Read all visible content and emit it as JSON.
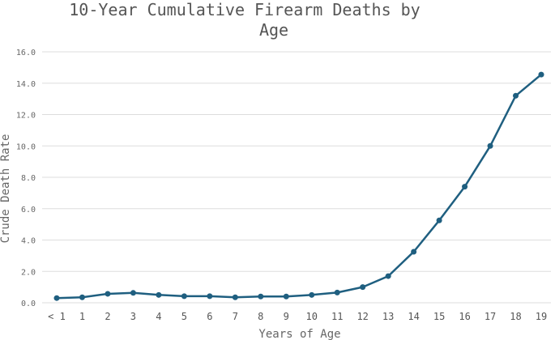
{
  "chart_data": {
    "type": "line",
    "title_lines": [
      "10-Year Cumulative Firearm Deaths by",
      "Age"
    ],
    "xlabel": "Years of Age",
    "ylabel": "Crude Death Rate",
    "categories": [
      "< 1",
      "1",
      "2",
      "3",
      "4",
      "5",
      "6",
      "7",
      "8",
      "9",
      "10",
      "11",
      "12",
      "13",
      "14",
      "15",
      "16",
      "17",
      "18",
      "19"
    ],
    "series": [
      {
        "values": [
          0.3,
          0.35,
          0.57,
          0.63,
          0.5,
          0.42,
          0.42,
          0.35,
          0.4,
          0.4,
          0.5,
          0.65,
          1.0,
          1.7,
          3.25,
          5.25,
          7.4,
          10.0,
          13.2,
          14.55
        ]
      }
    ],
    "ylim": [
      0,
      16
    ],
    "yticks": [
      "0.0",
      "2.0",
      "4.0",
      "6.0",
      "8.0",
      "10.0",
      "12.0",
      "14.0",
      "16.0"
    ],
    "ytick_values": [
      0,
      2,
      4,
      6,
      8,
      10,
      12,
      14,
      16
    ],
    "grid": true,
    "colors": {
      "line": "#1f5f80"
    }
  }
}
